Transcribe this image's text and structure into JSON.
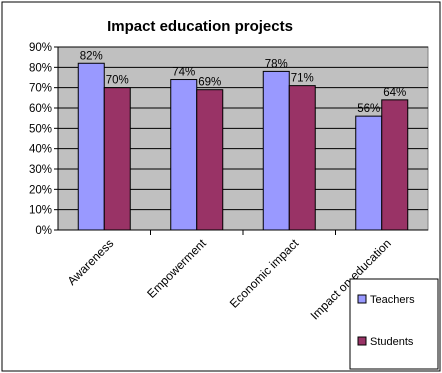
{
  "chart_data": {
    "type": "bar",
    "title": "Impact education projects",
    "xlabel": "",
    "ylabel": "",
    "categories": [
      "Awareness",
      "Empowerment",
      "Economic impact",
      "Impact on education"
    ],
    "series": [
      {
        "name": "Teachers",
        "values": [
          82,
          74,
          78,
          56
        ],
        "labels": [
          "82%",
          "74%",
          "78%",
          "56%"
        ],
        "color": "#9999ff"
      },
      {
        "name": "Students",
        "values": [
          70,
          69,
          71,
          64
        ],
        "labels": [
          "70%",
          "69%",
          "71%",
          "64%"
        ],
        "color": "#993366"
      }
    ],
    "ylim": [
      0,
      90
    ],
    "yticks": [
      {
        "value": 0,
        "label": "0%"
      },
      {
        "value": 10,
        "label": "10%"
      },
      {
        "value": 20,
        "label": "20%"
      },
      {
        "value": 30,
        "label": "30%"
      },
      {
        "value": 40,
        "label": "40%"
      },
      {
        "value": 50,
        "label": "50%"
      },
      {
        "value": 60,
        "label": "60%"
      },
      {
        "value": 70,
        "label": "70%"
      },
      {
        "value": 80,
        "label": "80%"
      },
      {
        "value": 90,
        "label": "90%"
      }
    ],
    "grid": true,
    "plot_background": "#c0c0c0",
    "legend_position": "bottom-right"
  }
}
